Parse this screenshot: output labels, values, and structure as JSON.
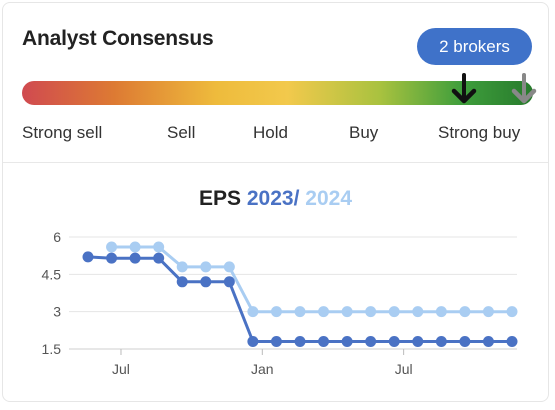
{
  "header": {
    "title": "Analyst Consensus",
    "brokers_label": "2 brokers"
  },
  "gauge": {
    "labels": [
      "Strong sell",
      "Sell",
      "Hold",
      "Buy",
      "Strong buy"
    ],
    "marker_current_color": "#111111",
    "marker_previous_color": "#888888"
  },
  "eps": {
    "title_prefix": "EPS",
    "year1": "2023",
    "separator": "/",
    "year2": "2024"
  },
  "chart_data": {
    "type": "line",
    "x": [
      0,
      1,
      2,
      3,
      4,
      5,
      6,
      7,
      8,
      9,
      10,
      11,
      12,
      13,
      14,
      15,
      16,
      17,
      18
    ],
    "x_tick_labels": [
      {
        "label": "Jul",
        "x": 1.4
      },
      {
        "label": "Jan",
        "x": 7.4
      },
      {
        "label": "Jul",
        "x": 13.4
      }
    ],
    "y_ticks": [
      1.5,
      3,
      4.5,
      6
    ],
    "ylim": [
      1.5,
      6
    ],
    "grid": true,
    "series": [
      {
        "name": "2023",
        "color": "#4a72c4",
        "values": [
          5.2,
          5.15,
          5.15,
          5.15,
          4.2,
          4.2,
          4.2,
          1.8,
          1.8,
          1.8,
          1.8,
          1.8,
          1.8,
          1.8,
          1.8,
          1.8,
          1.8,
          1.8,
          1.8
        ]
      },
      {
        "name": "2024",
        "color": "#a9cdf2",
        "values": [
          null,
          5.6,
          5.6,
          5.6,
          4.8,
          4.8,
          4.8,
          3.0,
          3.0,
          3.0,
          3.0,
          3.0,
          3.0,
          3.0,
          3.0,
          3.0,
          3.0,
          3.0,
          3.0
        ]
      }
    ]
  }
}
